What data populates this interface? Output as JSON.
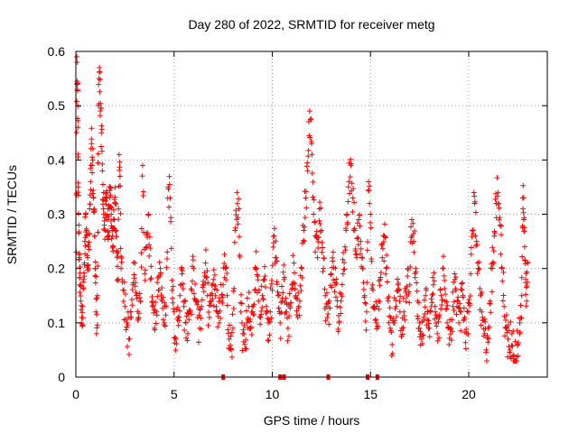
{
  "chart_data": {
    "type": "scatter",
    "title": "Day 280 of 2022, SRMTID for receiver metg",
    "xlabel": "GPS time / hours",
    "ylabel": "SRMTID / TECUs",
    "xlim": [
      0,
      24
    ],
    "ylim": [
      0,
      0.6
    ],
    "xticks": [
      0,
      5,
      10,
      15,
      20
    ],
    "xtick_labels": [
      "0",
      "5",
      "10",
      "15",
      "20"
    ],
    "yticks": [
      0,
      0.1,
      0.2,
      0.3,
      0.4,
      0.5,
      0.6
    ],
    "ytick_labels": [
      "0",
      "0.1",
      "0.2",
      "0.3",
      "0.4",
      "0.5",
      "0.6"
    ],
    "grid": true,
    "marker": "plus",
    "color": "#ff0000",
    "series": [
      {
        "name": "SRMTID",
        "note": "representative samples of a dense point cloud (~every 0.05 h); values estimated from axes",
        "points": [
          [
            0.02,
            0.23
          ],
          [
            0.05,
            0.59
          ],
          [
            0.08,
            0.53
          ],
          [
            0.1,
            0.46
          ],
          [
            0.12,
            0.35
          ],
          [
            0.15,
            0.28
          ],
          [
            0.18,
            0.22
          ],
          [
            0.2,
            0.17
          ],
          [
            0.25,
            0.14
          ],
          [
            0.3,
            0.11
          ],
          [
            0.35,
            0.13
          ],
          [
            0.4,
            0.18
          ],
          [
            0.45,
            0.25
          ],
          [
            0.5,
            0.3
          ],
          [
            0.55,
            0.27
          ],
          [
            0.6,
            0.22
          ],
          [
            0.65,
            0.24
          ],
          [
            0.7,
            0.31
          ],
          [
            0.75,
            0.36
          ],
          [
            0.8,
            0.43
          ],
          [
            0.85,
            0.4
          ],
          [
            0.9,
            0.33
          ],
          [
            0.95,
            0.26
          ],
          [
            1.0,
            0.2
          ],
          [
            1.05,
            0.08
          ],
          [
            1.1,
            0.15
          ],
          [
            1.15,
            0.5
          ],
          [
            1.2,
            0.57
          ],
          [
            1.25,
            0.49
          ],
          [
            1.3,
            0.45
          ],
          [
            1.35,
            0.38
          ],
          [
            1.4,
            0.31
          ],
          [
            1.45,
            0.28
          ],
          [
            1.5,
            0.3
          ],
          [
            1.55,
            0.33
          ],
          [
            1.6,
            0.29
          ],
          [
            1.65,
            0.26
          ],
          [
            1.7,
            0.31
          ],
          [
            1.75,
            0.35
          ],
          [
            1.8,
            0.3
          ],
          [
            1.85,
            0.27
          ],
          [
            1.9,
            0.24
          ],
          [
            1.95,
            0.29
          ],
          [
            2.0,
            0.32
          ],
          [
            2.05,
            0.27
          ],
          [
            2.1,
            0.22
          ],
          [
            2.15,
            0.18
          ],
          [
            2.2,
            0.41
          ],
          [
            2.25,
            0.37
          ],
          [
            2.3,
            0.2
          ],
          [
            2.4,
            0.16
          ],
          [
            2.5,
            0.13
          ],
          [
            2.6,
            0.1
          ],
          [
            2.7,
            0.07
          ],
          [
            2.8,
            0.12
          ],
          [
            2.9,
            0.17
          ],
          [
            3.0,
            0.21
          ],
          [
            3.1,
            0.15
          ],
          [
            3.2,
            0.11
          ],
          [
            3.3,
            0.14
          ],
          [
            3.4,
            0.39
          ],
          [
            3.5,
            0.19
          ],
          [
            3.6,
            0.24
          ],
          [
            3.7,
            0.3
          ],
          [
            3.8,
            0.18
          ],
          [
            3.9,
            0.13
          ],
          [
            4.0,
            0.09
          ],
          [
            4.1,
            0.12
          ],
          [
            4.2,
            0.16
          ],
          [
            4.3,
            0.2
          ],
          [
            4.4,
            0.14
          ],
          [
            4.5,
            0.1
          ],
          [
            4.6,
            0.13
          ],
          [
            4.7,
            0.35
          ],
          [
            4.8,
            0.33
          ],
          [
            4.9,
            0.16
          ],
          [
            5.0,
            0.12
          ],
          [
            5.1,
            0.07
          ],
          [
            5.2,
            0.11
          ],
          [
            5.3,
            0.15
          ],
          [
            5.4,
            0.19
          ],
          [
            5.5,
            0.13
          ],
          [
            5.6,
            0.1
          ],
          [
            5.7,
            0.08
          ],
          [
            5.8,
            0.12
          ],
          [
            5.9,
            0.16
          ],
          [
            6.0,
            0.2
          ],
          [
            6.1,
            0.14
          ],
          [
            6.2,
            0.11
          ],
          [
            6.3,
            0.09
          ],
          [
            6.4,
            0.13
          ],
          [
            6.5,
            0.17
          ],
          [
            6.6,
            0.21
          ],
          [
            6.7,
            0.15
          ],
          [
            6.8,
            0.11
          ],
          [
            6.9,
            0.14
          ],
          [
            7.0,
            0.18
          ],
          [
            7.1,
            0.15
          ],
          [
            7.2,
            0.12
          ],
          [
            7.3,
            0.1
          ],
          [
            7.4,
            0.14
          ],
          [
            7.5,
            0.17
          ],
          [
            7.6,
            0.2
          ],
          [
            7.7,
            0.15
          ],
          [
            7.8,
            0.07
          ],
          [
            7.9,
            0.05
          ],
          [
            8.0,
            0.09
          ],
          [
            8.1,
            0.27
          ],
          [
            8.2,
            0.34
          ],
          [
            8.3,
            0.31
          ],
          [
            8.4,
            0.12
          ],
          [
            8.5,
            0.08
          ],
          [
            8.6,
            0.06
          ],
          [
            8.7,
            0.1
          ],
          [
            8.8,
            0.13
          ],
          [
            8.9,
            0.09
          ],
          [
            9.0,
            0.12
          ],
          [
            9.1,
            0.16
          ],
          [
            9.2,
            0.2
          ],
          [
            9.3,
            0.14
          ],
          [
            9.4,
            0.11
          ],
          [
            9.5,
            0.15
          ],
          [
            9.6,
            0.18
          ],
          [
            9.7,
            0.13
          ],
          [
            9.8,
            0.1
          ],
          [
            9.9,
            0.12
          ],
          [
            10.0,
            0.16
          ],
          [
            10.1,
            0.26
          ],
          [
            10.2,
            0.22
          ],
          [
            10.3,
            0.15
          ],
          [
            10.4,
            0.1
          ],
          [
            10.5,
            0.14
          ],
          [
            10.6,
            0.18
          ],
          [
            10.7,
            0.12
          ],
          [
            10.8,
            0.09
          ],
          [
            10.9,
            0.13
          ],
          [
            11.0,
            0.17
          ],
          [
            11.1,
            0.21
          ],
          [
            11.2,
            0.15
          ],
          [
            11.3,
            0.11
          ],
          [
            11.4,
            0.14
          ],
          [
            11.5,
            0.2
          ],
          [
            11.6,
            0.27
          ],
          [
            11.7,
            0.33
          ],
          [
            11.8,
            0.38
          ],
          [
            11.9,
            0.49
          ],
          [
            12.0,
            0.43
          ],
          [
            12.1,
            0.3
          ],
          [
            12.2,
            0.26
          ],
          [
            12.3,
            0.22
          ],
          [
            12.4,
            0.31
          ],
          [
            12.5,
            0.27
          ],
          [
            12.6,
            0.2
          ],
          [
            12.7,
            0.15
          ],
          [
            12.8,
            0.11
          ],
          [
            12.9,
            0.14
          ],
          [
            13.0,
            0.19
          ],
          [
            13.1,
            0.23
          ],
          [
            13.2,
            0.17
          ],
          [
            13.3,
            0.13
          ],
          [
            13.4,
            0.1
          ],
          [
            13.5,
            0.14
          ],
          [
            13.6,
            0.19
          ],
          [
            13.7,
            0.24
          ],
          [
            13.8,
            0.3
          ],
          [
            13.9,
            0.36
          ],
          [
            14.0,
            0.39
          ],
          [
            14.1,
            0.33
          ],
          [
            14.2,
            0.27
          ],
          [
            14.3,
            0.22
          ],
          [
            14.4,
            0.29
          ],
          [
            14.5,
            0.25
          ],
          [
            14.6,
            0.2
          ],
          [
            14.7,
            0.15
          ],
          [
            14.8,
            0.12
          ],
          [
            14.9,
            0.36
          ],
          [
            15.0,
            0.3
          ],
          [
            15.1,
            0.17
          ],
          [
            15.2,
            0.13
          ],
          [
            15.3,
            0.1
          ],
          [
            15.4,
            0.14
          ],
          [
            15.5,
            0.18
          ],
          [
            15.6,
            0.22
          ],
          [
            15.7,
            0.26
          ],
          [
            15.8,
            0.2
          ],
          [
            15.9,
            0.14
          ],
          [
            16.0,
            0.09
          ],
          [
            16.1,
            0.06
          ],
          [
            16.2,
            0.1
          ],
          [
            16.3,
            0.13
          ],
          [
            16.4,
            0.17
          ],
          [
            16.5,
            0.12
          ],
          [
            16.6,
            0.09
          ],
          [
            16.7,
            0.12
          ],
          [
            16.8,
            0.16
          ],
          [
            16.9,
            0.2
          ],
          [
            17.0,
            0.17
          ],
          [
            17.1,
            0.29
          ],
          [
            17.2,
            0.25
          ],
          [
            17.3,
            0.2
          ],
          [
            17.4,
            0.14
          ],
          [
            17.5,
            0.1
          ],
          [
            17.6,
            0.07
          ],
          [
            17.7,
            0.11
          ],
          [
            17.8,
            0.15
          ],
          [
            17.9,
            0.12
          ],
          [
            18.0,
            0.09
          ],
          [
            18.1,
            0.13
          ],
          [
            18.2,
            0.17
          ],
          [
            18.3,
            0.12
          ],
          [
            18.4,
            0.08
          ],
          [
            18.5,
            0.11
          ],
          [
            18.6,
            0.15
          ],
          [
            18.7,
            0.2
          ],
          [
            18.8,
            0.14
          ],
          [
            18.9,
            0.1
          ],
          [
            19.0,
            0.06
          ],
          [
            19.1,
            0.09
          ],
          [
            19.2,
            0.13
          ],
          [
            19.3,
            0.18
          ],
          [
            19.4,
            0.13
          ],
          [
            19.5,
            0.1
          ],
          [
            19.6,
            0.12
          ],
          [
            19.7,
            0.15
          ],
          [
            19.8,
            0.11
          ],
          [
            19.9,
            0.08
          ],
          [
            20.0,
            0.12
          ],
          [
            20.1,
            0.19
          ],
          [
            20.2,
            0.27
          ],
          [
            20.3,
            0.32
          ],
          [
            20.4,
            0.25
          ],
          [
            20.5,
            0.2
          ],
          [
            20.6,
            0.15
          ],
          [
            20.7,
            0.11
          ],
          [
            20.8,
            0.08
          ],
          [
            20.9,
            0.05
          ],
          [
            21.0,
            0.09
          ],
          [
            21.1,
            0.14
          ],
          [
            21.2,
            0.2
          ],
          [
            21.3,
            0.26
          ],
          [
            21.4,
            0.32
          ],
          [
            21.5,
            0.34
          ],
          [
            21.6,
            0.28
          ],
          [
            21.7,
            0.2
          ],
          [
            21.8,
            0.13
          ],
          [
            21.9,
            0.09
          ],
          [
            22.0,
            0.07
          ],
          [
            22.1,
            0.05
          ],
          [
            22.2,
            0.08
          ],
          [
            22.3,
            0.04
          ],
          [
            22.4,
            0.03
          ],
          [
            22.5,
            0.06
          ],
          [
            22.6,
            0.1
          ],
          [
            22.7,
            0.15
          ],
          [
            22.75,
            0.33
          ],
          [
            22.8,
            0.29
          ],
          [
            22.85,
            0.24
          ],
          [
            22.9,
            0.18
          ],
          [
            22.95,
            0.14
          ],
          [
            23.0,
            0.21
          ]
        ],
        "zero_points": [
          [
            7.5,
            0
          ],
          [
            10.4,
            0
          ],
          [
            10.6,
            0
          ],
          [
            12.85,
            0
          ],
          [
            14.85,
            0
          ],
          [
            15.35,
            0
          ]
        ]
      }
    ]
  }
}
